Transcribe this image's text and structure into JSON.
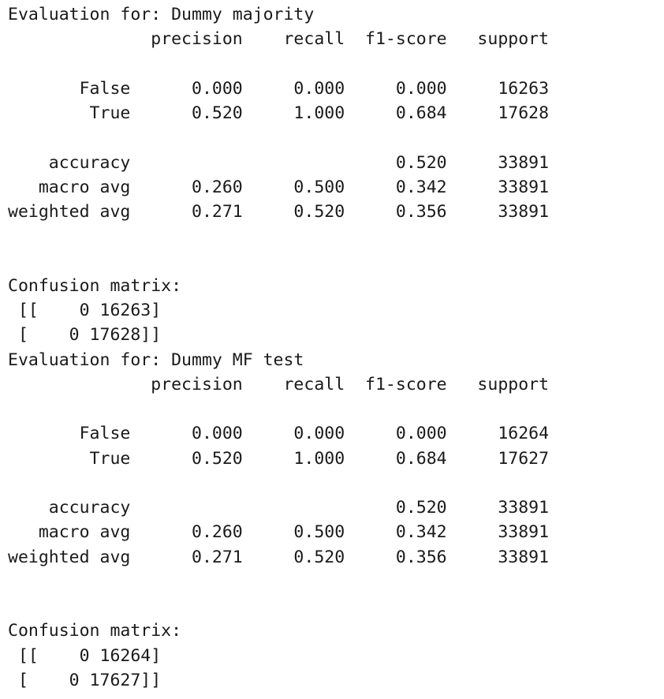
{
  "output": {
    "lines": [
      "Evaluation for: Dummy majority",
      "              precision    recall  f1-score   support",
      "",
      "       False      0.000     0.000     0.000     16263",
      "        True      0.520     1.000     0.684     17628",
      "",
      "    accuracy                          0.520     33891",
      "   macro avg      0.260     0.500     0.342     33891",
      "weighted avg      0.271     0.520     0.356     33891",
      "",
      "",
      "Confusion matrix:",
      " [[    0 16263]",
      " [    0 17628]]",
      "Evaluation for: Dummy MF test",
      "              precision    recall  f1-score   support",
      "",
      "       False      0.000     0.000     0.000     16264",
      "        True      0.520     1.000     0.684     17627",
      "",
      "    accuracy                          0.520     33891",
      "   macro avg      0.260     0.500     0.342     33891",
      "weighted avg      0.271     0.520     0.356     33891",
      "",
      "",
      "Confusion matrix:",
      " [[    0 16264]",
      " [    0 17627]]"
    ]
  }
}
